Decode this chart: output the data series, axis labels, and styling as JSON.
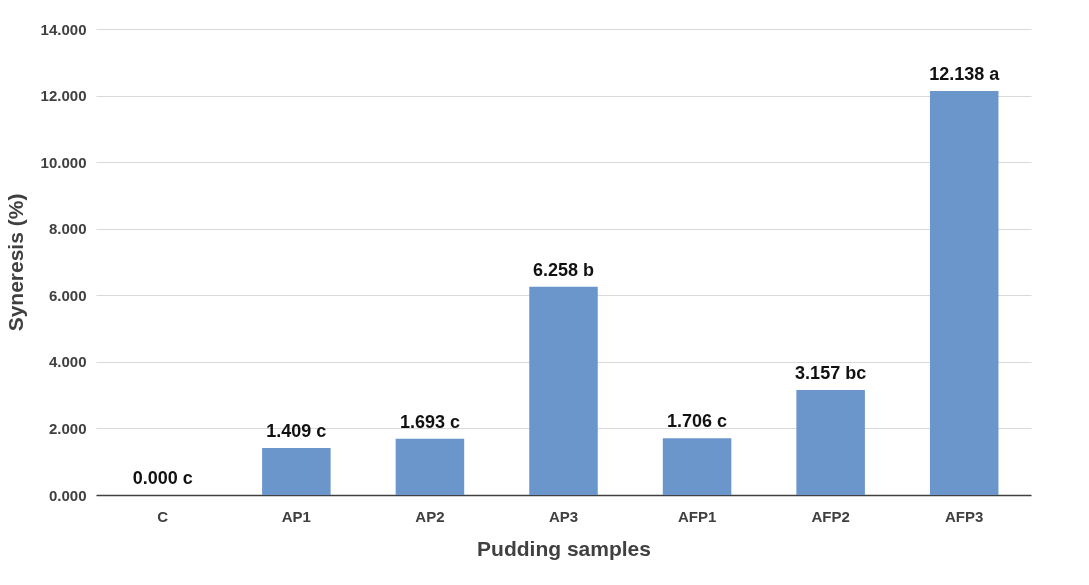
{
  "chart_data": {
    "type": "bar",
    "xlabel": "Pudding samples",
    "ylabel": "Syneresis (%)",
    "categories": [
      "C",
      "AP1",
      "AP2",
      "AP3",
      "AFP1",
      "AFP2",
      "AFP3"
    ],
    "values": [
      0.0,
      1.409,
      1.693,
      6.258,
      1.706,
      3.157,
      12.138
    ],
    "value_labels": [
      "0.000 c",
      "1.409 c",
      "1.693 c",
      "6.258 b",
      "1.706 c",
      "3.157 bc",
      "12.138 a"
    ],
    "color": "#6a96cc",
    "ylim": [
      0,
      14
    ],
    "yticks": [
      {
        "value": 0,
        "label": "0.000"
      },
      {
        "value": 2,
        "label": "2.000"
      },
      {
        "value": 4,
        "label": "4.000"
      },
      {
        "value": 6,
        "label": "6.000"
      },
      {
        "value": 8,
        "label": "8.000"
      },
      {
        "value": 10,
        "label": "10.000"
      },
      {
        "value": 12,
        "label": "12.000"
      },
      {
        "value": 14,
        "label": "14.000"
      }
    ],
    "grid": "y"
  }
}
